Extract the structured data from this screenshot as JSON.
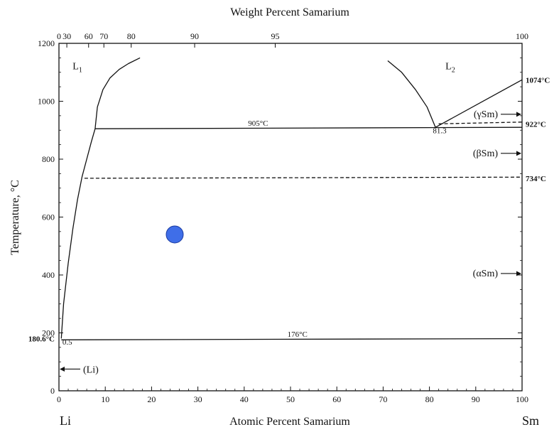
{
  "chart_data": {
    "type": "line",
    "title": "Weight Percent Samarium",
    "xlabel": "Atomic Percent Samarium",
    "ylabel": "Temperature, °C",
    "xlim": [
      0,
      100
    ],
    "ylim": [
      0,
      1200
    ],
    "x_ticks": [
      0,
      10,
      20,
      30,
      40,
      50,
      60,
      70,
      80,
      90,
      100
    ],
    "y_ticks": [
      0,
      200,
      400,
      600,
      800,
      1000,
      1200
    ],
    "top_axis_ticks": [
      {
        "label": "0",
        "at_at_pct": 0
      },
      {
        "label": "30",
        "at_at_pct": 1.7
      },
      {
        "label": "60",
        "at_at_pct": 6.4
      },
      {
        "label": "70",
        "at_at_pct": 9.7
      },
      {
        "label": "80",
        "at_at_pct": 15.6
      },
      {
        "label": "90",
        "at_at_pct": 29.3
      },
      {
        "label": "95",
        "at_at_pct": 46.7
      },
      {
        "label": "100",
        "at_at_pct": 100
      }
    ],
    "end_labels": {
      "left": "Li",
      "right": "Sm"
    },
    "series": [
      {
        "style": "solid",
        "x": [
          7.8,
          8.3,
          9.5,
          11,
          13,
          15,
          17.5
        ],
        "y": [
          905,
          980,
          1040,
          1080,
          1110,
          1130,
          1150
        ]
      },
      {
        "style": "solid",
        "x": [
          0.5,
          1,
          2,
          3,
          4,
          5,
          6,
          7,
          7.8
        ],
        "y": [
          180.6,
          300,
          440,
          560,
          660,
          740,
          800,
          860,
          905
        ]
      },
      {
        "style": "solid",
        "x": [
          71,
          74,
          77,
          79.5,
          81.3
        ],
        "y": [
          1140,
          1100,
          1040,
          980,
          910
        ]
      },
      {
        "style": "solid",
        "x": [
          81.3,
          100
        ],
        "y": [
          910,
          1074
        ]
      },
      {
        "style": "solid",
        "x": [
          7.8,
          100
        ],
        "y": [
          905,
          910
        ]
      },
      {
        "style": "dashed",
        "x": [
          82,
          100
        ],
        "y": [
          922,
          928
        ]
      },
      {
        "style": "dashed",
        "x": [
          5.5,
          100
        ],
        "y": [
          734,
          738
        ]
      },
      {
        "style": "solid",
        "x": [
          0.5,
          100
        ],
        "y": [
          176,
          180
        ]
      }
    ],
    "points": [
      {
        "x": 25,
        "y": 540,
        "color": "#3f6ee8"
      }
    ],
    "annotations": [
      {
        "text": "905°C",
        "x": 43,
        "y": 915,
        "style": "normal"
      },
      {
        "text": "176°C",
        "x": 51.5,
        "y": 187,
        "style": "normal"
      },
      {
        "text": "81.3",
        "x": 82.2,
        "y": 890,
        "style": "normal"
      },
      {
        "text": "0.5",
        "x": 1.8,
        "y": 160,
        "style": "normal"
      },
      {
        "text": "L",
        "sub": "1",
        "x": 4,
        "y": 1110,
        "style": "phase"
      },
      {
        "text": "L",
        "sub": "2",
        "x": 84.5,
        "y": 1110,
        "style": "phase"
      }
    ],
    "side_labels": [
      {
        "text": "1074°C",
        "y": 1074,
        "side": "right"
      },
      {
        "text": "922°C",
        "y": 922,
        "side": "right"
      },
      {
        "text": "734°C",
        "y": 734,
        "side": "right"
      },
      {
        "text": "180.6°C",
        "y": 180.6,
        "side": "left"
      }
    ],
    "phase_arrows": [
      {
        "text": "(γSm)",
        "y": 955
      },
      {
        "text": "(βSm)",
        "y": 820
      },
      {
        "text": "(αSm)",
        "y": 405
      }
    ],
    "left_arrow": {
      "text": "(Li)",
      "y": 75
    },
    "colors": {
      "line": "#111111",
      "point": "#3f6ee8",
      "point_stroke": "#1a3aa0"
    },
    "grid": false,
    "legend": "none"
  }
}
